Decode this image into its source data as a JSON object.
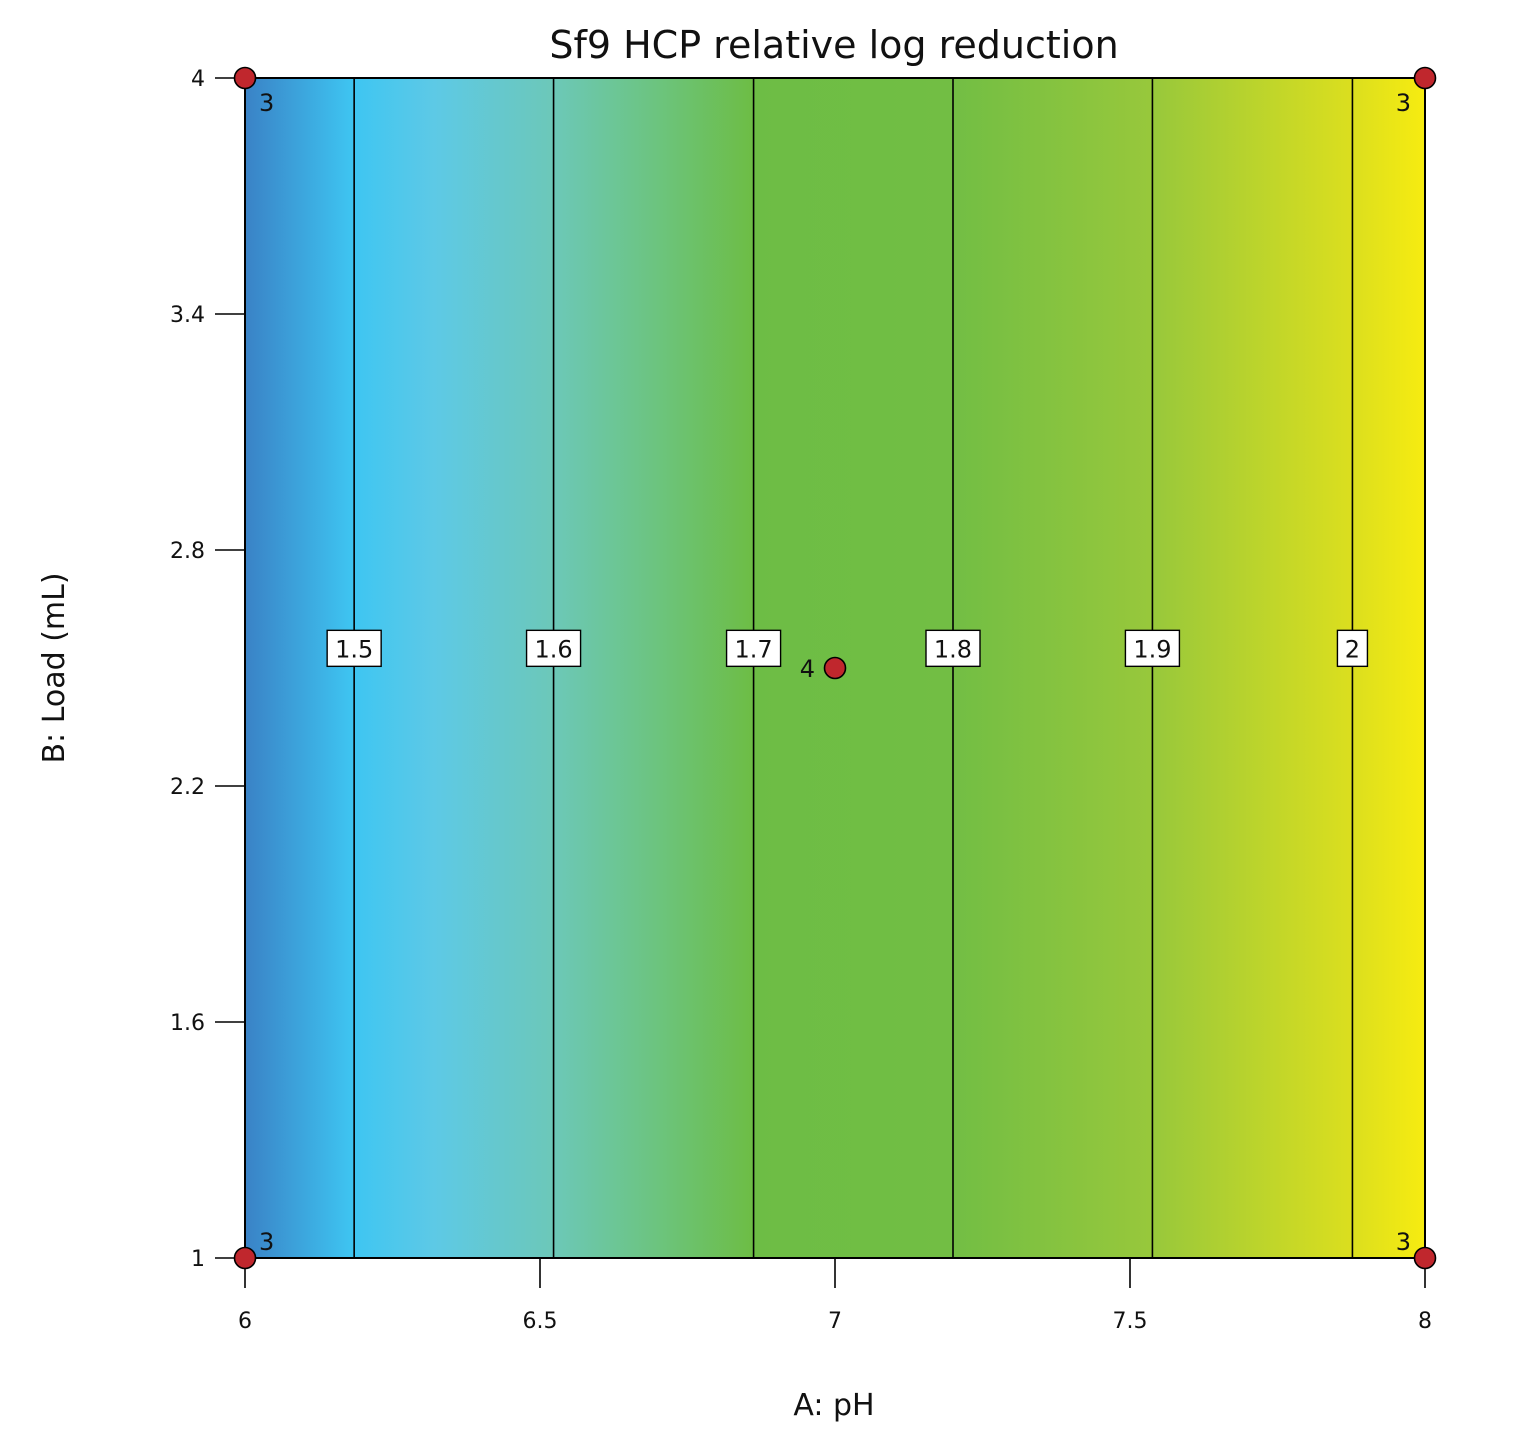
{
  "chart_data": {
    "type": "contour",
    "title": "Sf9 HCP relative log reduction",
    "xlabel": "A: pH",
    "ylabel": "B: Load (mL)",
    "xlim": [
      6,
      8
    ],
    "ylim": [
      1,
      4
    ],
    "x_ticks": [
      6,
      6.5,
      7,
      7.5,
      8
    ],
    "y_ticks": [
      1,
      1.6,
      2.2,
      2.8,
      3.4,
      4
    ],
    "x_tick_labels": [
      "6",
      "6.5",
      "7",
      "7.5",
      "8"
    ],
    "y_tick_labels": [
      "1",
      "1.6",
      "2.2",
      "2.8",
      "3.4",
      "4"
    ],
    "contour_label_y": 2.55,
    "contours": [
      {
        "level": 1.5,
        "label": "1.5",
        "x": 6.185
      },
      {
        "level": 1.6,
        "label": "1.6",
        "x": 6.523
      },
      {
        "level": 1.7,
        "label": "1.7",
        "x": 6.862
      },
      {
        "level": 1.8,
        "label": "1.8",
        "x": 7.2
      },
      {
        "level": 1.9,
        "label": "1.9",
        "x": 7.538
      },
      {
        "level": 2.0,
        "label": "2",
        "x": 7.877
      }
    ],
    "color_stops": [
      {
        "x": 6.0,
        "color": "#3a82c6"
      },
      {
        "x": 6.185,
        "color": "#3ec6f2"
      },
      {
        "x": 6.32,
        "color": "#5dc9e6"
      },
      {
        "x": 6.52,
        "color": "#6cc8b9"
      },
      {
        "x": 6.7,
        "color": "#6cc47e"
      },
      {
        "x": 6.86,
        "color": "#6dbd45"
      },
      {
        "x": 7.2,
        "color": "#72be44"
      },
      {
        "x": 7.54,
        "color": "#98c83b"
      },
      {
        "x": 7.88,
        "color": "#dcdf1e"
      },
      {
        "x": 8.0,
        "color": "#f7ec10"
      }
    ],
    "design_points": [
      {
        "x": 6,
        "y": 4,
        "count": "3",
        "label_side": "below-right"
      },
      {
        "x": 8,
        "y": 4,
        "count": "3",
        "label_side": "below-left"
      },
      {
        "x": 6,
        "y": 1,
        "count": "3",
        "label_side": "above-right"
      },
      {
        "x": 8,
        "y": 1,
        "count": "3",
        "label_side": "above-left"
      },
      {
        "x": 7,
        "y": 2.5,
        "count": "4",
        "label_side": "left"
      }
    ],
    "point_color": "#c0272d"
  }
}
